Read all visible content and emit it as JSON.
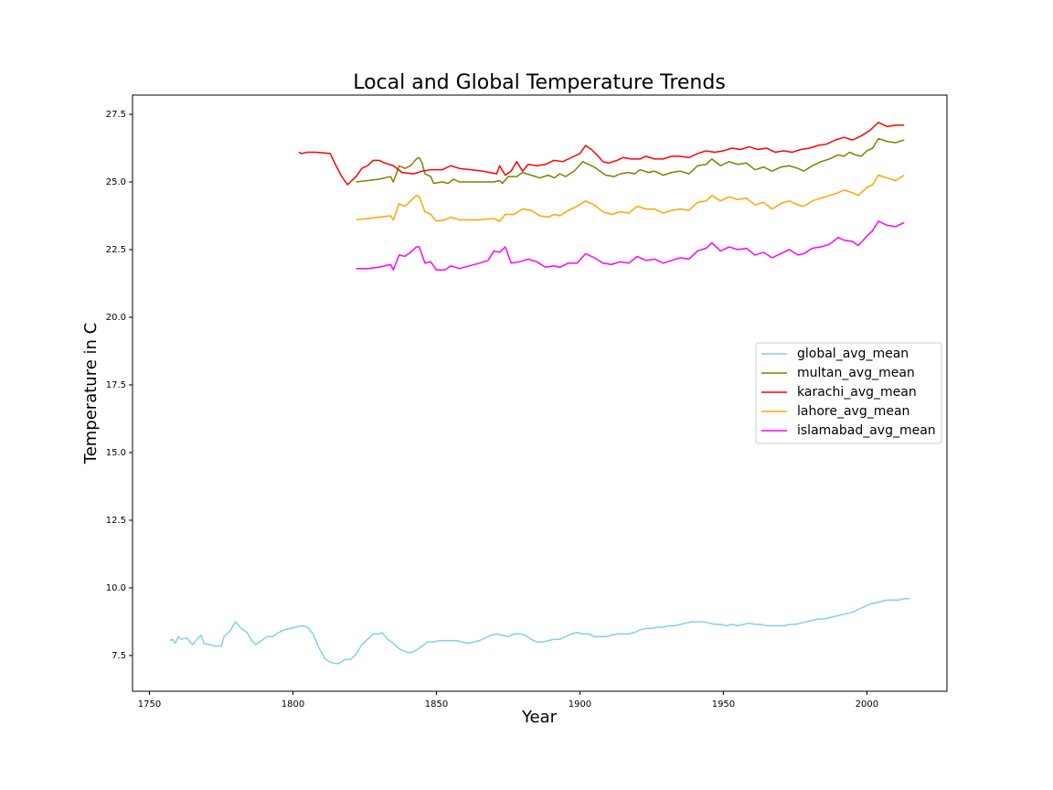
{
  "chart_data": {
    "type": "line",
    "title": "Local and Global Temperature Trends",
    "x_label": "Year",
    "y_label": "Temperature in C",
    "xlim": [
      1744.1,
      2027.9
    ],
    "ylim": [
      6.18,
      28.21
    ],
    "xticks": [
      1750,
      1800,
      1850,
      1900,
      1950,
      2000
    ],
    "yticks": [
      7.5,
      {
        "value": 10,
        "label": "10.0"
      },
      12.5,
      {
        "value": 15,
        "label": "15.0"
      },
      17.5,
      {
        "value": 20,
        "label": "20.0"
      },
      22.5,
      {
        "value": 25,
        "label": "25.0"
      },
      27.5
    ],
    "grid": false,
    "legend": "center right",
    "series": [
      {
        "name": "global_avg_mean",
        "color": "#87ceeb",
        "x": [
          1757,
          1758,
          1759,
          1760,
          1761,
          1763,
          1765,
          1767,
          1768,
          1769,
          1771,
          1773,
          1775,
          1776,
          1778,
          1780,
          1782,
          1784,
          1786,
          1787,
          1789,
          1791,
          1793,
          1795,
          1797,
          1799,
          1801,
          1803,
          1805,
          1807,
          1809,
          1811,
          1813,
          1815,
          1816,
          1818,
          1820,
          1822,
          1824,
          1826,
          1828,
          1830,
          1831,
          1833,
          1835,
          1837,
          1839,
          1841,
          1843,
          1845,
          1847,
          1849,
          1851,
          1853,
          1855,
          1857,
          1859,
          1861,
          1863,
          1865,
          1867,
          1869,
          1871,
          1873,
          1875,
          1877,
          1879,
          1881,
          1883,
          1885,
          1887,
          1889,
          1891,
          1893,
          1895,
          1897,
          1899,
          1901,
          1903,
          1905,
          1907,
          1909,
          1911,
          1913,
          1915,
          1917,
          1919,
          1921,
          1923,
          1925,
          1927,
          1929,
          1931,
          1933,
          1935,
          1937,
          1939,
          1941,
          1943,
          1945,
          1947,
          1949,
          1951,
          1953,
          1955,
          1957,
          1959,
          1961,
          1963,
          1965,
          1967,
          1969,
          1971,
          1973,
          1975,
          1977,
          1979,
          1981,
          1983,
          1985,
          1987,
          1989,
          1991,
          1993,
          1995,
          1997,
          1999,
          2001,
          2003,
          2005,
          2007,
          2009,
          2011,
          2013,
          2015
        ],
        "values": [
          8.05,
          8.1,
          7.95,
          8.2,
          8.1,
          8.15,
          7.9,
          8.15,
          8.25,
          7.95,
          7.9,
          7.85,
          7.85,
          8.2,
          8.4,
          8.75,
          8.5,
          8.35,
          8.0,
          7.9,
          8.05,
          8.2,
          8.2,
          8.35,
          8.45,
          8.5,
          8.55,
          8.6,
          8.55,
          8.3,
          7.8,
          7.4,
          7.25,
          7.2,
          7.2,
          7.35,
          7.35,
          7.55,
          7.9,
          8.1,
          8.3,
          8.3,
          8.35,
          8.1,
          7.95,
          7.75,
          7.65,
          7.6,
          7.7,
          7.85,
          8.0,
          8.0,
          8.05,
          8.05,
          8.05,
          8.05,
          8.0,
          7.95,
          8.0,
          8.05,
          8.15,
          8.25,
          8.3,
          8.25,
          8.2,
          8.3,
          8.3,
          8.25,
          8.1,
          8.0,
          8.0,
          8.05,
          8.1,
          8.1,
          8.2,
          8.3,
          8.35,
          8.3,
          8.3,
          8.2,
          8.2,
          8.2,
          8.25,
          8.3,
          8.3,
          8.3,
          8.35,
          8.45,
          8.5,
          8.5,
          8.55,
          8.55,
          8.6,
          8.6,
          8.65,
          8.7,
          8.75,
          8.75,
          8.75,
          8.7,
          8.65,
          8.65,
          8.6,
          8.65,
          8.6,
          8.65,
          8.7,
          8.65,
          8.65,
          8.6,
          8.6,
          8.6,
          8.6,
          8.65,
          8.65,
          8.7,
          8.75,
          8.8,
          8.85,
          8.85,
          8.9,
          8.95,
          9.0,
          9.05,
          9.1,
          9.2,
          9.3,
          9.4,
          9.45,
          9.5,
          9.55,
          9.55,
          9.55,
          9.6,
          9.6
        ]
      },
      {
        "name": "multan_avg_mean",
        "color": "#808000",
        "x": [
          1822,
          1826,
          1830,
          1834,
          1835,
          1837,
          1839,
          1841,
          1843,
          1844,
          1845,
          1846,
          1848,
          1849,
          1852,
          1854,
          1856,
          1858,
          1865,
          1870,
          1872,
          1873,
          1875,
          1878,
          1880,
          1883,
          1886,
          1889,
          1891,
          1893,
          1895,
          1898,
          1901,
          1903,
          1905,
          1907,
          1909,
          1912,
          1914,
          1917,
          1919,
          1921,
          1924,
          1926,
          1929,
          1932,
          1935,
          1938,
          1941,
          1944,
          1946,
          1949,
          1952,
          1955,
          1958,
          1961,
          1964,
          1967,
          1970,
          1973,
          1976,
          1978,
          1981,
          1984,
          1987,
          1990,
          1992,
          1994,
          1996,
          1998,
          2000,
          2002,
          2004,
          2007,
          2010,
          2013
        ],
        "values": [
          25.0,
          25.05,
          25.1,
          25.2,
          25.0,
          25.6,
          25.5,
          25.6,
          25.85,
          25.9,
          25.7,
          25.3,
          25.2,
          24.95,
          25.0,
          24.95,
          25.1,
          25.0,
          25.0,
          25.0,
          25.05,
          24.95,
          25.2,
          25.2,
          25.35,
          25.25,
          25.15,
          25.25,
          25.15,
          25.3,
          25.2,
          25.4,
          25.75,
          25.65,
          25.55,
          25.4,
          25.25,
          25.2,
          25.3,
          25.35,
          25.3,
          25.45,
          25.35,
          25.4,
          25.25,
          25.35,
          25.4,
          25.3,
          25.6,
          25.65,
          25.85,
          25.6,
          25.75,
          25.65,
          25.7,
          25.45,
          25.55,
          25.4,
          25.55,
          25.6,
          25.5,
          25.4,
          25.6,
          25.75,
          25.85,
          26.0,
          25.95,
          26.1,
          26.0,
          25.95,
          26.15,
          26.25,
          26.6,
          26.5,
          26.45,
          26.55
        ]
      },
      {
        "name": "karachi_avg_mean",
        "color": "#ff0000",
        "x": [
          1802,
          1803,
          1805,
          1808,
          1813,
          1815,
          1817,
          1819,
          1820,
          1822,
          1824,
          1826,
          1828,
          1830,
          1832,
          1835,
          1838,
          1842,
          1845,
          1848,
          1852,
          1855,
          1858,
          1862,
          1866,
          1871,
          1872,
          1874,
          1876,
          1878,
          1880,
          1882,
          1885,
          1888,
          1891,
          1894,
          1897,
          1900,
          1902,
          1904,
          1906,
          1908,
          1910,
          1913,
          1915,
          1918,
          1921,
          1923,
          1926,
          1929,
          1932,
          1935,
          1938,
          1941,
          1944,
          1947,
          1950,
          1953,
          1956,
          1959,
          1962,
          1965,
          1968,
          1971,
          1974,
          1977,
          1980,
          1983,
          1986,
          1989,
          1992,
          1995,
          1998,
          2001,
          2004,
          2007,
          2010,
          2013
        ],
        "values": [
          26.1,
          26.05,
          26.1,
          26.1,
          26.05,
          25.6,
          25.2,
          24.9,
          25.0,
          25.2,
          25.5,
          25.6,
          25.8,
          25.8,
          25.7,
          25.6,
          25.35,
          25.3,
          25.4,
          25.45,
          25.45,
          25.6,
          25.5,
          25.45,
          25.4,
          25.3,
          25.6,
          25.25,
          25.4,
          25.75,
          25.4,
          25.65,
          25.6,
          25.65,
          25.8,
          25.75,
          25.9,
          26.05,
          26.35,
          26.2,
          26.0,
          25.75,
          25.7,
          25.8,
          25.9,
          25.85,
          25.85,
          25.95,
          25.85,
          25.85,
          25.95,
          25.95,
          25.9,
          26.05,
          26.15,
          26.1,
          26.15,
          26.25,
          26.2,
          26.3,
          26.2,
          26.25,
          26.1,
          26.15,
          26.1,
          26.2,
          26.25,
          26.35,
          26.4,
          26.55,
          26.65,
          26.55,
          26.7,
          26.9,
          27.2,
          27.05,
          27.1,
          27.1
        ]
      },
      {
        "name": "lahore_avg_mean",
        "color": "#ffa500",
        "x": [
          1822,
          1826,
          1830,
          1834,
          1835,
          1837,
          1839,
          1841,
          1843,
          1844,
          1846,
          1848,
          1850,
          1853,
          1855,
          1858,
          1865,
          1870,
          1872,
          1874,
          1877,
          1880,
          1883,
          1886,
          1889,
          1891,
          1893,
          1896,
          1899,
          1902,
          1905,
          1908,
          1911,
          1914,
          1917,
          1920,
          1923,
          1926,
          1929,
          1932,
          1935,
          1938,
          1941,
          1944,
          1946,
          1949,
          1952,
          1955,
          1958,
          1961,
          1964,
          1967,
          1970,
          1973,
          1976,
          1978,
          1981,
          1984,
          1987,
          1990,
          1992,
          1995,
          1997,
          2000,
          2002,
          2004,
          2007,
          2010,
          2013
        ],
        "values": [
          23.6,
          23.65,
          23.7,
          23.75,
          23.6,
          24.2,
          24.1,
          24.3,
          24.5,
          24.45,
          23.9,
          23.8,
          23.55,
          23.6,
          23.7,
          23.6,
          23.6,
          23.65,
          23.55,
          23.8,
          23.8,
          24.0,
          23.95,
          23.75,
          23.7,
          23.8,
          23.75,
          23.95,
          24.1,
          24.3,
          24.15,
          23.9,
          23.8,
          23.9,
          23.85,
          24.1,
          24.0,
          24.0,
          23.85,
          23.95,
          24.0,
          23.95,
          24.25,
          24.3,
          24.5,
          24.3,
          24.45,
          24.35,
          24.4,
          24.15,
          24.25,
          24.0,
          24.2,
          24.3,
          24.15,
          24.1,
          24.3,
          24.4,
          24.5,
          24.6,
          24.7,
          24.6,
          24.5,
          24.8,
          24.9,
          25.25,
          25.15,
          25.05,
          25.25
        ]
      },
      {
        "name": "islamabad_avg_mean",
        "color": "#ff00ff",
        "x": [
          1822,
          1826,
          1830,
          1834,
          1835,
          1837,
          1839,
          1841,
          1843,
          1844,
          1846,
          1848,
          1850,
          1853,
          1855,
          1858,
          1865,
          1868,
          1870,
          1872,
          1874,
          1876,
          1879,
          1882,
          1885,
          1888,
          1891,
          1893,
          1896,
          1899,
          1902,
          1905,
          1908,
          1911,
          1914,
          1917,
          1920,
          1923,
          1926,
          1929,
          1932,
          1935,
          1938,
          1941,
          1944,
          1946,
          1949,
          1952,
          1955,
          1958,
          1961,
          1964,
          1967,
          1970,
          1973,
          1976,
          1978,
          1981,
          1984,
          1987,
          1990,
          1992,
          1995,
          1997,
          2000,
          2002,
          2004,
          2007,
          2010,
          2013
        ],
        "values": [
          21.8,
          21.8,
          21.85,
          21.95,
          21.75,
          22.3,
          22.25,
          22.4,
          22.6,
          22.6,
          22.0,
          22.05,
          21.75,
          21.75,
          21.9,
          21.8,
          22.0,
          22.1,
          22.45,
          22.4,
          22.6,
          22.0,
          22.05,
          22.15,
          22.05,
          21.85,
          21.9,
          21.85,
          22.0,
          22.0,
          22.35,
          22.2,
          22.0,
          21.95,
          22.05,
          22.0,
          22.25,
          22.1,
          22.15,
          22.0,
          22.1,
          22.2,
          22.15,
          22.45,
          22.55,
          22.75,
          22.45,
          22.6,
          22.5,
          22.55,
          22.3,
          22.4,
          22.2,
          22.35,
          22.5,
          22.3,
          22.35,
          22.55,
          22.6,
          22.7,
          22.95,
          22.85,
          22.8,
          22.65,
          23.0,
          23.2,
          23.55,
          23.4,
          23.35,
          23.5
        ]
      }
    ]
  }
}
